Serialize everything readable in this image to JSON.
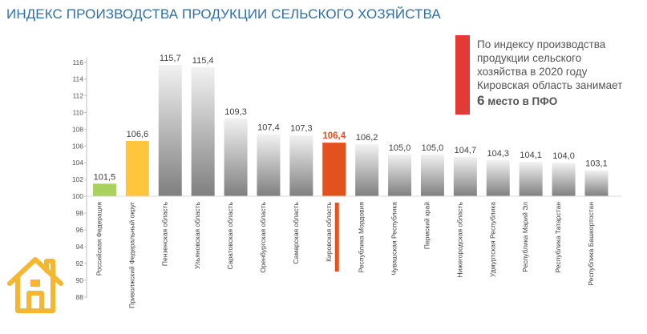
{
  "title": "ИНДЕКС ПРОИЗВОДСТВА ПРОДУКЦИИ СЕЛЬСКОГО ХОЗЯЙСТВА",
  "note": {
    "line1": "По индексу производства",
    "line2": "продукции сельского",
    "line3": "хозяйства в 2020 году",
    "line4": "Кировская область занимает",
    "rank_num": "6",
    "rank_text": " место в  ПФО"
  },
  "icons": {
    "house": "house-icon"
  },
  "chart_data": {
    "type": "bar",
    "categories": [
      "Российская Федерация",
      "Приволжский Федеральный округ",
      "Пензенская область",
      "Ульяновская область",
      "Саратовская область",
      "Оренбургская область",
      "Самарская область",
      "Кировская область",
      "Республика Мордовия",
      "Чувашская Республика",
      "Пермский край",
      "Нижегородская область",
      "Удмуртская Республика",
      "Республика Марий Эл",
      "Республика Татарстан",
      "Республика Башкортостан"
    ],
    "values": [
      101.5,
      106.6,
      115.7,
      115.4,
      109.3,
      107.4,
      107.3,
      106.4,
      106.2,
      105.0,
      105.0,
      104.7,
      104.3,
      104.1,
      104.0,
      103.1
    ],
    "value_labels": [
      "101,5",
      "106,6",
      "115,7",
      "115,4",
      "109,3",
      "107,4",
      "107,3",
      "106,4",
      "106,2",
      "105,0",
      "105,0",
      "104,7",
      "104,3",
      "104,1",
      "104,0",
      "103,1"
    ],
    "bar_colors": [
      "#a8d160",
      "#ffc53d",
      "gray",
      "gray",
      "gray",
      "gray",
      "gray",
      "#e2521e",
      "gray",
      "gray",
      "gray",
      "gray",
      "gray",
      "gray",
      "gray",
      "gray"
    ],
    "highlight_index": 7,
    "highlight_color": "#e2521e",
    "upper_ticks": [
      "100",
      "102",
      "104",
      "106",
      "108",
      "110",
      "112",
      "114",
      "116"
    ],
    "lower_ticks": [
      "88",
      "90",
      "92",
      "94",
      "96",
      "98"
    ],
    "ylim": [
      88,
      116
    ],
    "grid": false,
    "legend": "none"
  }
}
